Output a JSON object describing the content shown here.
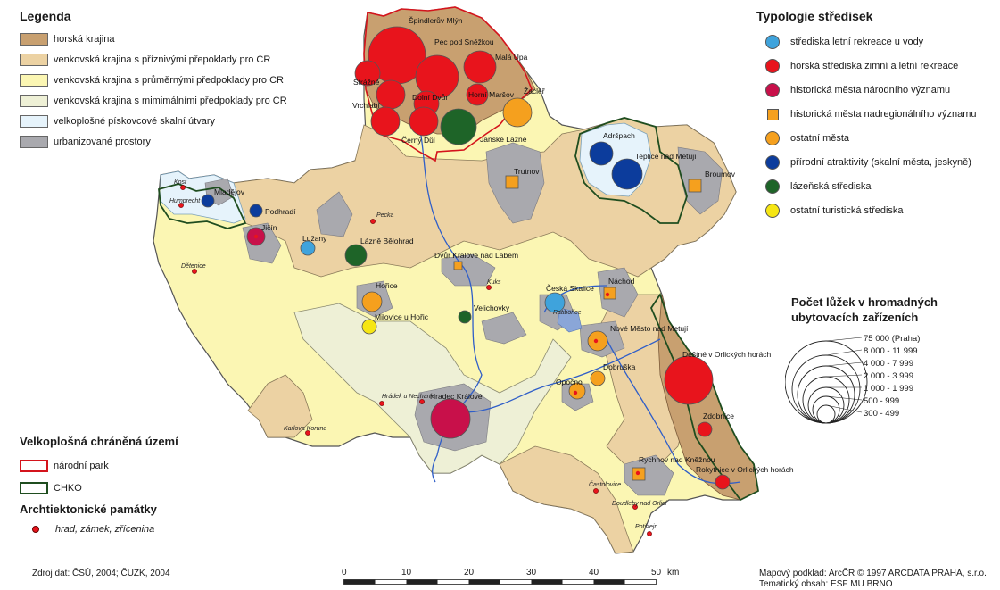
{
  "legend": {
    "title": "Legenda",
    "items": [
      {
        "label": "horská krajina",
        "color": "#c8a070"
      },
      {
        "label": "venkovská krajina s příznivými přepoklady pro CR",
        "color": "#ecd2a3"
      },
      {
        "label": "venkovská krajina s průměrnými předpoklady pro CR",
        "color": "#fbf6b3"
      },
      {
        "label": "venkovská krajina s mimimálními předpoklady pro CR",
        "color": "#eef0d6"
      },
      {
        "label": "velkoplošné pískovcové skalní útvary",
        "color": "#e6f3fb"
      },
      {
        "label": "urbanizované prostory",
        "color": "#a9a9ae"
      }
    ]
  },
  "protected": {
    "title": "Velkoplošná chráněná území",
    "items": [
      {
        "label": "národní park",
        "color": "#d4141c"
      },
      {
        "label": "CHKO",
        "color": "#1f4d1f"
      }
    ]
  },
  "monuments": {
    "title": "Archtiektonické památky",
    "label": "hrad, zámek, zřícenina"
  },
  "typology": {
    "title": "Typologie středisek",
    "items": [
      {
        "label": "střediska letní rekreace u vody",
        "color": "#3fa3dc",
        "shape": "circle"
      },
      {
        "label": "horská střediska zimní a letní rekreace",
        "color": "#e8141c",
        "shape": "circle"
      },
      {
        "label": "historická města národního významu",
        "color": "#c8104a",
        "shape": "circle"
      },
      {
        "label": "historická města nadregionálního významu",
        "color": "#f5a01e",
        "shape": "square"
      },
      {
        "label": "ostatní města",
        "color": "#f5a01e",
        "shape": "circle"
      },
      {
        "label": "přírodní atraktivity (skalní města, jeskyně)",
        "color": "#0c3c9c",
        "shape": "circle"
      },
      {
        "label": "lázeňská střediska",
        "color": "#1e6428",
        "shape": "circle"
      },
      {
        "label": "ostatní turistická střediska",
        "color": "#f6e614",
        "shape": "circle"
      }
    ]
  },
  "capacity": {
    "title_line1": "Počet lůžek v hromadných",
    "title_line2": "ubytovacích zařízeních",
    "classes": [
      "75 000 (Praha)",
      "8 000 - 11 999",
      "4 000 - 7 999",
      "2 000 - 3 999",
      "1 000 - 1 999",
      "500 - 999",
      "300 - 499"
    ]
  },
  "scale": {
    "ticks": [
      "0",
      "10",
      "20",
      "30",
      "40",
      "50"
    ],
    "unit": "km"
  },
  "footer": {
    "source": "Zdroj dat: ČSÚ, 2004;  ČUZK, 2004",
    "map_base": "Mapový podklad: ArcČR © 1997 ARCDATA PRAHA, s.r.o.",
    "thematic": "Tematický obsah: ESF MU BRNO"
  },
  "places": {
    "spindleruv_mlyn": "Špindlerův Mlýn",
    "pec": "Pec pod Sněžkou",
    "mala_upa": "Malá Úpa",
    "strazne": "Strážné",
    "vrchlabi": "Vrchlabí",
    "dolni_dvur": "Dolní Dvůr",
    "horni_marsov": "Horní Maršov",
    "zacler": "Žacléř",
    "cerny_dul": "Černý Důl",
    "janske_lazne": "Janské Lázně",
    "trutnov": "Trutnov",
    "adrspach": "Adršpach",
    "teplice": "Teplice nad Metují",
    "broumov": "Broumov",
    "kost": "Kost",
    "humprecht": "Humprecht",
    "mladejov": "Mladějov",
    "podhradi": "Podhradí",
    "jicin": "Jičín",
    "luzany": "Lužany",
    "pecka": "Pecka",
    "lazne_belohrad": "Lázně Bělohrad",
    "dvur_kralove": "Dvůr Králové nad Labem",
    "ceska_skalice": "Česká Skalice",
    "ratiborice": "Ratibořice",
    "nachod": "Náchod",
    "kuks": "Kuks",
    "horice": "Hořice",
    "milovice": "Milovice u Hořic",
    "velichovky": "Velichovky",
    "detenice": "Dětenice",
    "nove_mesto": "Nové Město nad Metují",
    "destne": "Deštné v Orlických horách",
    "dobruska": "Dobruška",
    "opocno": "Opočno",
    "hradek": "Hrádek u Nechanic",
    "hradec_kralove": "Hradec Králové",
    "karlova_koruna": "Karlova Koruna",
    "zdobnice": "Zdobnice",
    "rychnov": "Rychnov nad Kněžnou",
    "rokytnice": "Rokytnice v Orlických horách",
    "castolovice": "Častolovice",
    "doudleby": "Doudleby nad Orlicí",
    "potstejn": "Potštejn"
  }
}
